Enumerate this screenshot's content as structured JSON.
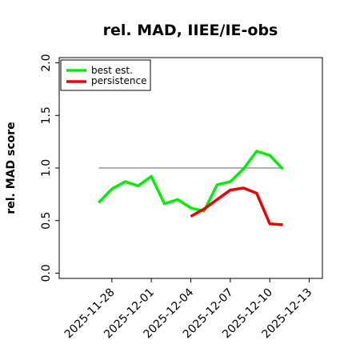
{
  "chart_data": {
    "type": "line",
    "title": "rel. MAD, IIEE/IE-obs",
    "xlabel": "",
    "ylabel": "rel. MAD score",
    "ylim": [
      -0.05,
      2.05
    ],
    "xlim": [
      "2025-11-24",
      "2025-12-14"
    ],
    "yticks": [
      0.0,
      0.5,
      1.0,
      1.5,
      2.0
    ],
    "ytick_labels": [
      "0.0",
      "0.5",
      "1.0",
      "1.5",
      "2.0"
    ],
    "xticks": [
      "2025-11-28",
      "2025-12-01",
      "2025-12-04",
      "2025-12-07",
      "2025-12-10",
      "2025-12-13"
    ],
    "xtick_labels": [
      "2025-11-28",
      "2025-12-01",
      "2025-12-04",
      "2025-12-07",
      "2025-12-10",
      "2025-12-13"
    ],
    "legend_position": "top-left",
    "grid": false,
    "reference_line": {
      "y": 1.0,
      "x_start": "2025-11-27",
      "x_end": "2025-12-11",
      "color": "#808080"
    },
    "series": [
      {
        "name": "best est.",
        "color": "#00ee00",
        "x": [
          "2025-11-27",
          "2025-11-28",
          "2025-11-29",
          "2025-11-30",
          "2025-12-01",
          "2025-12-02",
          "2025-12-03",
          "2025-12-04",
          "2025-12-05",
          "2025-12-06",
          "2025-12-07",
          "2025-12-08",
          "2025-12-09",
          "2025-12-10",
          "2025-12-11"
        ],
        "values": [
          0.67,
          0.8,
          0.87,
          0.83,
          0.92,
          0.66,
          0.7,
          0.62,
          0.59,
          0.84,
          0.87,
          0.99,
          1.16,
          1.12,
          0.99
        ]
      },
      {
        "name": "persistence",
        "color": "#ee0000",
        "x": [
          "2025-12-04",
          "2025-12-05",
          "2025-12-06",
          "2025-12-07",
          "2025-12-08",
          "2025-12-09",
          "2025-12-10",
          "2025-12-11"
        ],
        "values": [
          0.54,
          0.61,
          0.7,
          0.79,
          0.81,
          0.76,
          0.47,
          0.46
        ]
      }
    ]
  }
}
